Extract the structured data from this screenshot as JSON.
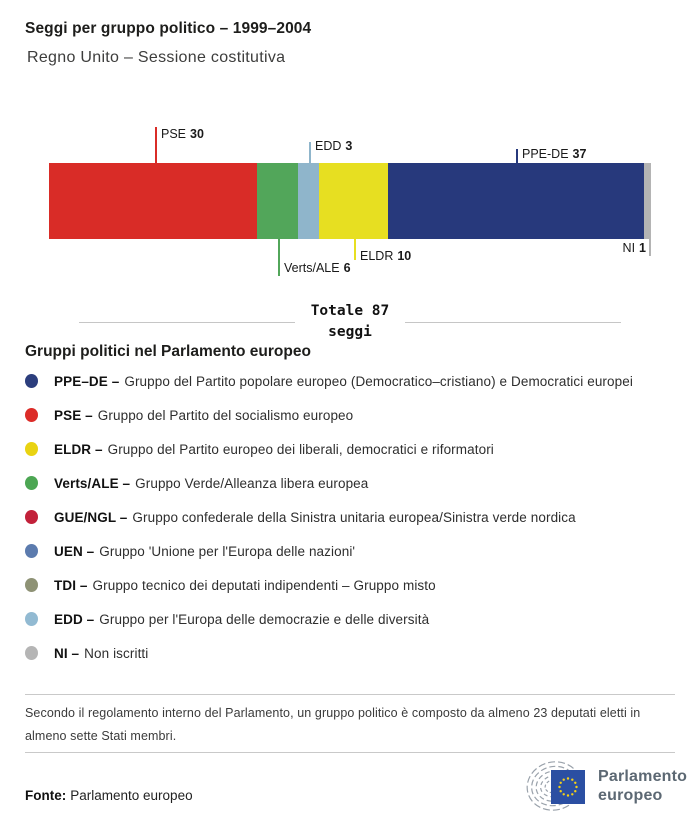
{
  "header": {
    "title": "Seggi per gruppo politico – 1999–2004",
    "subtitle": "Regno Unito – Sessione costitutiva"
  },
  "chart_data": {
    "type": "bar",
    "orientation": "horizontal-stacked",
    "title": "Seggi per gruppo politico – 1999–2004",
    "subtitle": "Regno Unito – Sessione costitutiva",
    "total_seats": 87,
    "total_label_line1": "Totale 87",
    "total_label_line2": "seggi",
    "segments": [
      {
        "group": "PSE",
        "seats": 30,
        "color": "#d92c27",
        "label_position": "above"
      },
      {
        "group": "Verts/ALE",
        "seats": 6,
        "color": "#52a65a",
        "label_position": "below"
      },
      {
        "group": "EDD",
        "seats": 3,
        "color": "#8fb5cb",
        "label_position": "above"
      },
      {
        "group": "ELDR",
        "seats": 10,
        "color": "#e7df21",
        "label_position": "below"
      },
      {
        "group": "PPE-DE",
        "seats": 37,
        "color": "#27397c",
        "label_position": "above"
      },
      {
        "group": "NI",
        "seats": 1,
        "color": "#b4b4b4",
        "label_position": "below"
      }
    ]
  },
  "legend": {
    "heading": "Gruppi politici nel Parlamento europeo",
    "items": [
      {
        "abbr": "PPE–DE –",
        "desc": "Gruppo del Partito popolare europeo (Democratico–cristiano) e Democratici europei",
        "color": "#2c3e7d"
      },
      {
        "abbr": "PSE –",
        "desc": "Gruppo del Partito del socialismo europeo",
        "color": "#dc2c28"
      },
      {
        "abbr": "ELDR –",
        "desc": "Gruppo del Partito europeo dei liberali, democratici e riformatori",
        "color": "#e9d312"
      },
      {
        "abbr": "Verts/ALE –",
        "desc": "Gruppo Verde/Alleanza libera europea",
        "color": "#4ca653"
      },
      {
        "abbr": "GUE/NGL –",
        "desc": "Gruppo confederale della Sinistra unitaria europea/Sinistra verde nordica",
        "color": "#c2213a"
      },
      {
        "abbr": "UEN –",
        "desc": "Gruppo 'Unione per l'Europa delle nazioni'",
        "color": "#5c7bae"
      },
      {
        "abbr": "TDI –",
        "desc": "Gruppo tecnico dei deputati indipendenti – Gruppo misto",
        "color": "#8e9275"
      },
      {
        "abbr": "EDD –",
        "desc": "Gruppo per l'Europa delle democrazie e delle diversità",
        "color": "#92bad2"
      },
      {
        "abbr": "NI –",
        "desc": "Non iscritti",
        "color": "#b5b5b5"
      }
    ]
  },
  "footnote": "Secondo il regolamento interno del Parlamento, un gruppo politico è composto da almeno 23 deputati eletti in almeno sette Stati membri.",
  "source": {
    "label": "Fonte:",
    "value": "Parlamento europeo"
  },
  "logo": {
    "line1": "Parlamento",
    "line2": "europeo"
  }
}
